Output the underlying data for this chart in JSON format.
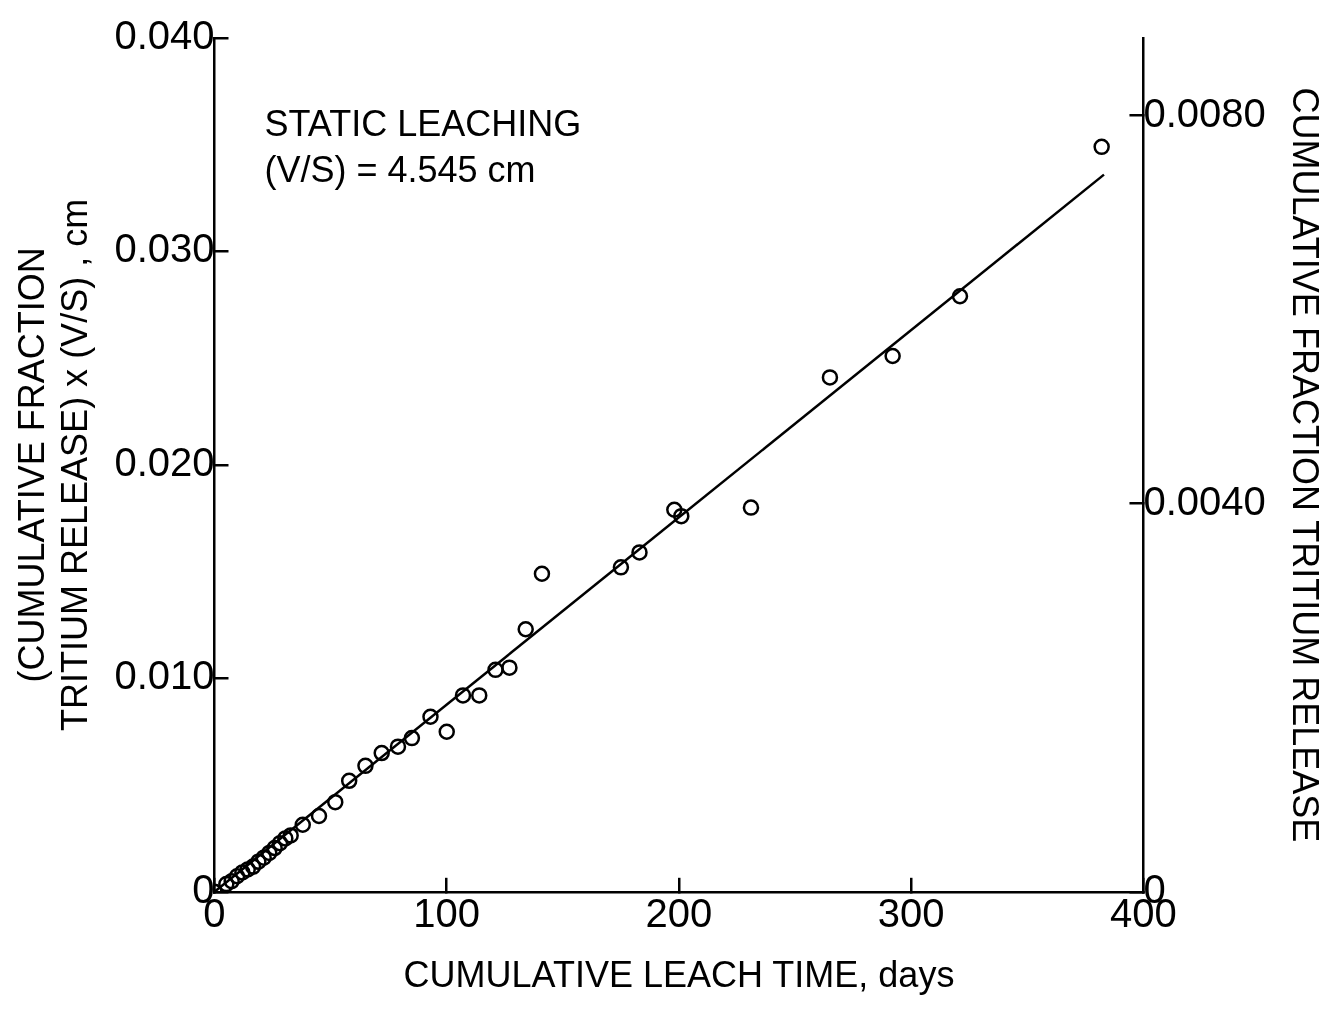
{
  "chart_data": {
    "type": "scatter",
    "xlabel": "CUMULATIVE LEACH TIME, days",
    "ylabel": "(CUMULATIVE FRACTION\nTRITIUM RELEASE) x (V/S) , cm",
    "y2label": "CUMULATIVE FRACTION TRITIUM RELEASE",
    "annotations": [
      "STATIC LEACHING",
      "(V/S) = 4.545 cm"
    ],
    "xlim": [
      0,
      400
    ],
    "xticks": [
      0,
      100,
      200,
      300,
      400
    ],
    "ylim": [
      0,
      0.04
    ],
    "yticks": [
      {
        "value": 0,
        "label": "0"
      },
      {
        "value": 0.01,
        "label": "0.010"
      },
      {
        "value": 0.02,
        "label": "0.020"
      },
      {
        "value": 0.03,
        "label": "0.030"
      },
      {
        "value": 0.04,
        "label": "0.040"
      }
    ],
    "y2lim": [
      0,
      0.0088
    ],
    "y2ticks": [
      0,
      {
        "value": 0.004,
        "label": "0.0040"
      },
      {
        "value": 0.008,
        "label": "0.0080"
      }
    ],
    "grid": false,
    "legend": false,
    "marker": "circle",
    "series": [
      {
        "color": "#000000",
        "x": [
          0,
          5.1,
          7.4,
          9.7,
          12,
          14.3,
          16.6,
          18.9,
          21.2,
          23.6,
          25.9,
          28.2,
          30.5,
          32.8,
          38,
          45,
          52,
          58,
          65,
          72,
          79,
          85,
          93,
          100,
          107,
          114,
          121,
          127,
          134,
          141,
          175,
          183,
          198,
          201,
          231,
          265,
          292,
          321,
          382
        ],
        "values": [
          0,
          0.00036,
          0.0005,
          0.00073,
          0.00091,
          0.00105,
          0.00118,
          0.00141,
          0.0016,
          0.00182,
          0.00205,
          0.00228,
          0.0025,
          0.00264,
          0.00314,
          0.00355,
          0.0042,
          0.0052,
          0.0059,
          0.0065,
          0.0068,
          0.0072,
          0.0082,
          0.0075,
          0.0092,
          0.0092,
          0.0104,
          0.0105,
          0.0123,
          0.0149,
          0.0152,
          0.0159,
          0.0179,
          0.0176,
          0.018,
          0.0241,
          0.0251,
          0.0279,
          0.0349
        ]
      },
      {
        "type": "line",
        "color": "#000000",
        "x": [
          0,
          383
        ],
        "values": [
          0,
          0.0336
        ],
        "line_style": "solid",
        "marker": "none"
      }
    ]
  }
}
